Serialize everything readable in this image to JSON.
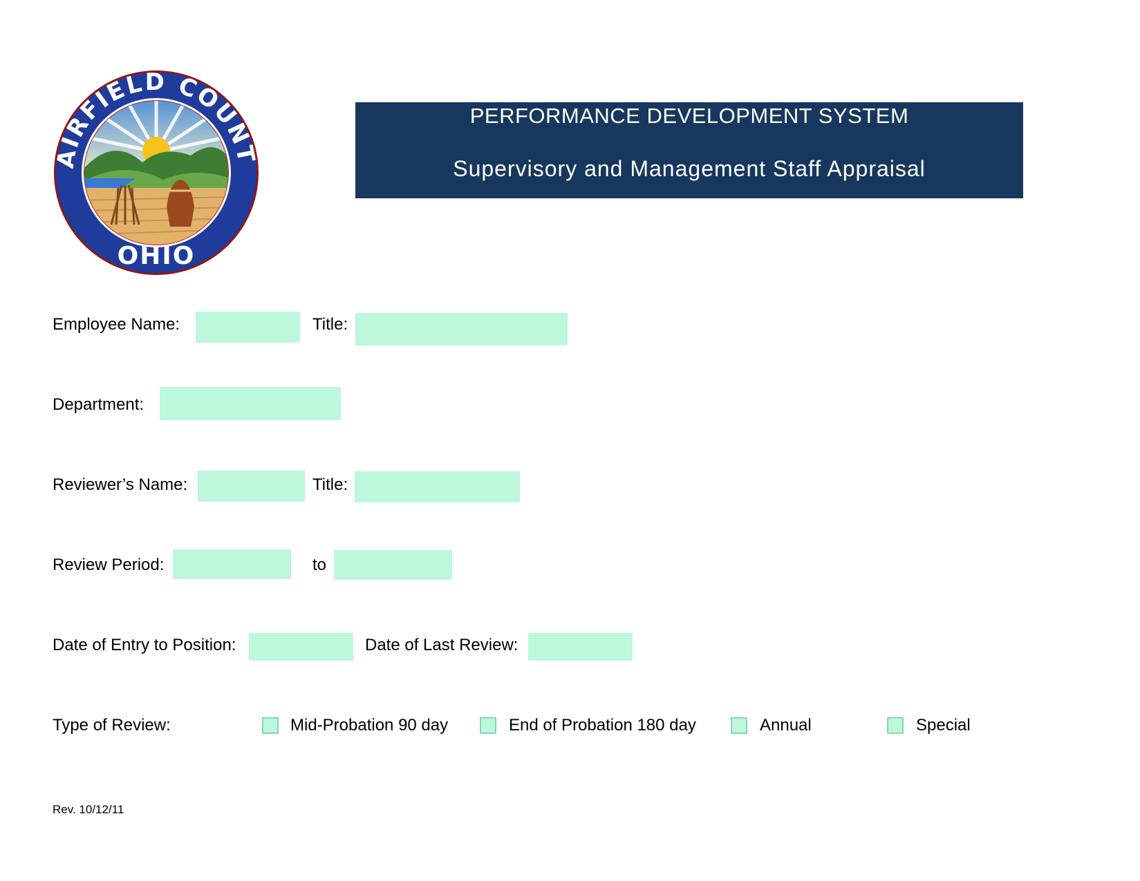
{
  "logo": {
    "top_text": "FAIRFIELD COUNTY",
    "bottom_text": "OHIO"
  },
  "header": {
    "title": "PERFORMANCE DEVELOPMENT SYSTEM",
    "subtitle": "Supervisory and Management Staff Appraisal"
  },
  "form": {
    "employee_name_label": "Employee Name:",
    "employee_title_label": "Title:",
    "department_label": "Department:",
    "reviewer_name_label": "Reviewer’s Name:",
    "reviewer_title_label": "Title:",
    "review_period_label": "Review Period:",
    "review_period_to": "to",
    "date_entry_label": "Date of Entry to Position:",
    "date_last_review_label": "Date of Last Review:",
    "review_type_label": "Type of Review:",
    "review_types": [
      "Mid-Probation 90 day",
      "End of Probation 180 day",
      "Annual",
      "Special"
    ]
  },
  "colors": {
    "banner": "#17375e",
    "field_fill": "#bdf7dc"
  },
  "footer": {
    "revision": "Rev. 10/12/11"
  }
}
